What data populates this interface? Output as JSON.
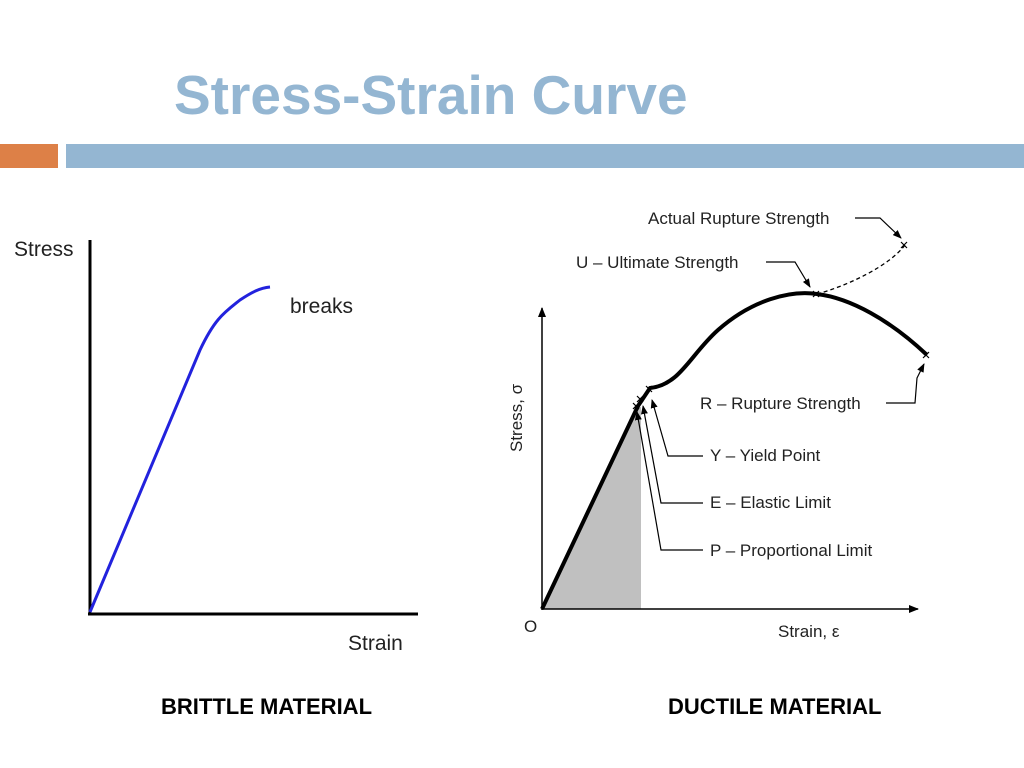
{
  "title": "Stress-Strain Curve",
  "colors": {
    "title": "#94b6d2",
    "accent_bar": "#dd8047",
    "main_bar": "#94b6d2",
    "brittle_curve": "#2222dd",
    "shaded_area": "#c0c0c0"
  },
  "brittle": {
    "y_label": "Stress",
    "x_label": "Strain",
    "annotation": "breaks",
    "caption": "BRITTLE  MATERIAL"
  },
  "ductile": {
    "y_label": "Stress, σ",
    "x_label": "Strain, ε",
    "origin_label": "O",
    "labels": {
      "actual_rupture": "Actual Rupture Strength",
      "ultimate": "U – Ultimate Strength",
      "rupture": "R – Rupture Strength",
      "yield": "Y – Yield Point",
      "elastic": "E – Elastic Limit",
      "proportional": "P – Proportional Limit"
    },
    "caption": "DUCTILE MATERIAL"
  }
}
